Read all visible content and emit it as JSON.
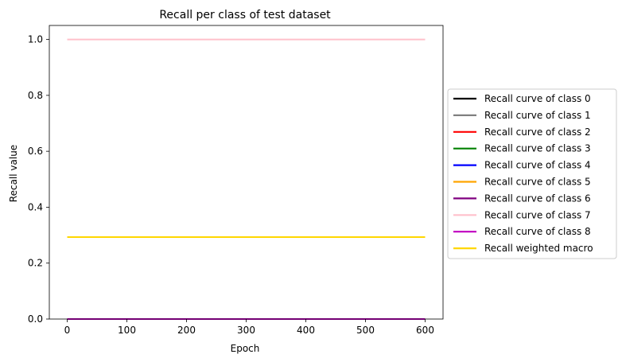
{
  "chart_data": {
    "type": "line",
    "title": "Recall per class of test dataset",
    "xlabel": "Epoch",
    "ylabel": "Recall value",
    "xlim": [
      -30,
      630
    ],
    "ylim": [
      0.0,
      1.05
    ],
    "xticks": [
      0,
      100,
      200,
      300,
      400,
      500,
      600
    ],
    "yticks": [
      0.0,
      0.2,
      0.4,
      0.6,
      0.8,
      1.0
    ],
    "ytick_labels": [
      "0.0",
      "0.2",
      "0.4",
      "0.6",
      "0.8",
      "1.0"
    ],
    "grid": false,
    "legend_position": "center-right-outside",
    "series": [
      {
        "name": "Recall curve of class 0",
        "color": "#000000",
        "x": [
          0,
          600
        ],
        "y": [
          0.0,
          0.0
        ]
      },
      {
        "name": "Recall curve of class 1",
        "color": "#808080",
        "x": [
          0,
          600
        ],
        "y": [
          0.0,
          0.0
        ]
      },
      {
        "name": "Recall curve of class 2",
        "color": "#ff0000",
        "x": [
          0,
          600
        ],
        "y": [
          0.0,
          0.0
        ]
      },
      {
        "name": "Recall curve of class 3",
        "color": "#008000",
        "x": [
          0,
          600
        ],
        "y": [
          0.0,
          0.0
        ]
      },
      {
        "name": "Recall curve of class 4",
        "color": "#0000ff",
        "x": [
          0,
          600
        ],
        "y": [
          0.0,
          0.0
        ]
      },
      {
        "name": "Recall curve of class 5",
        "color": "#ffa500",
        "x": [
          0,
          600
        ],
        "y": [
          0.0,
          0.0
        ]
      },
      {
        "name": "Recall curve of class 6",
        "color": "#800080",
        "x": [
          0,
          600
        ],
        "y": [
          0.0,
          0.0
        ]
      },
      {
        "name": "Recall curve of class 7",
        "color": "#ffc0cb",
        "x": [
          0,
          600
        ],
        "y": [
          1.0,
          1.0
        ]
      },
      {
        "name": "Recall curve of class 8",
        "color": "#c000c0",
        "x": [
          0,
          600
        ],
        "y": [
          0.0,
          0.0
        ]
      },
      {
        "name": "Recall weighted macro",
        "color": "#ffd700",
        "x": [
          0,
          600
        ],
        "y": [
          0.293,
          0.293
        ]
      }
    ]
  }
}
